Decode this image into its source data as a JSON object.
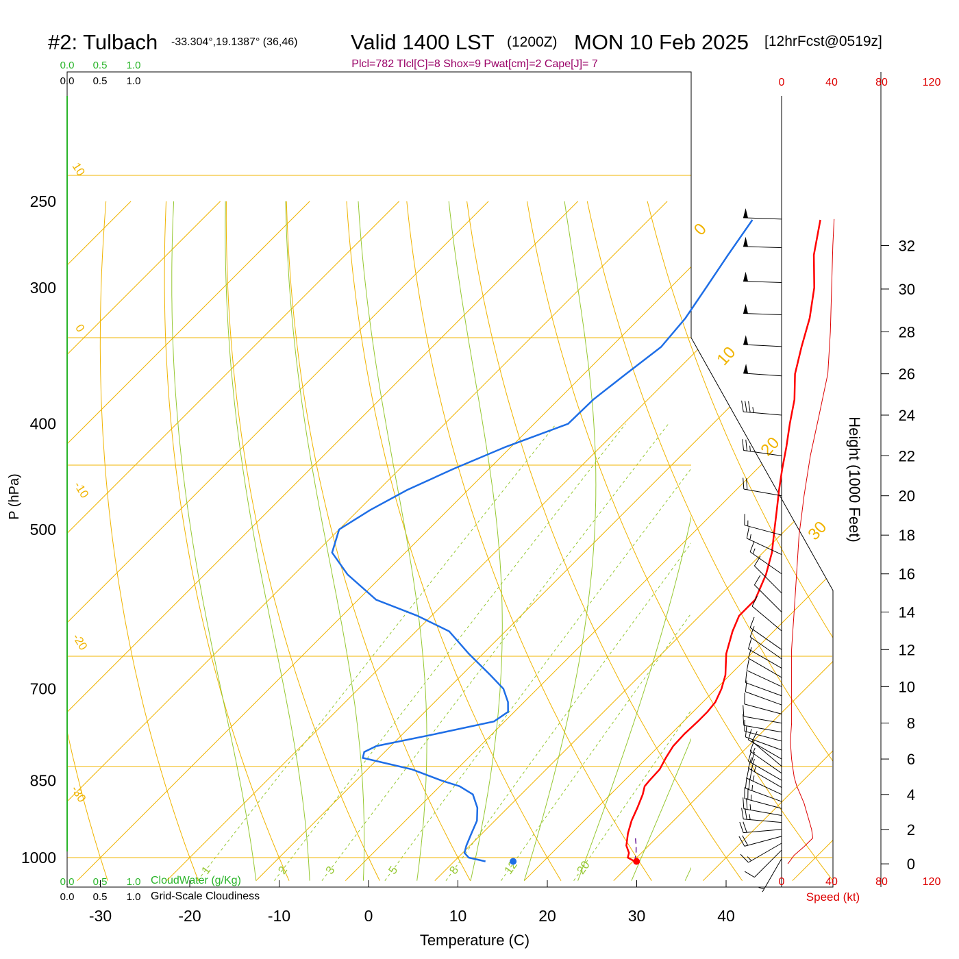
{
  "header": {
    "station": "#2: Tulbach",
    "coords": "-33.304°,19.1387° (36,46)",
    "valid": "Valid 1400 LST",
    "zulu": "(1200Z)",
    "date": "MON 10 Feb 2025",
    "forecast": "[12hrFcst@0519z]",
    "indices": "Plcl=782 Tlcl[C]=8 Shox=9 Pwat[cm]=2 Cape[J]= 7"
  },
  "colors": {
    "temperature": "#ff0000",
    "dewpoint": "#1e6ee6",
    "isotherm": "#f0b400",
    "dry_adiabat": "#f0b400",
    "moist_adiabat": "#96c832",
    "mixing_ratio": "#96c832",
    "cloud_axis": "#28b428",
    "speed": "#dd0000",
    "parcel": "#6a1b9a",
    "indices_text": "#990066"
  },
  "chart_data": {
    "type": "line",
    "xlabel": "Temperature (C)",
    "ylabel": "P (hPa)",
    "right_ylabel": "Height (1000 Feet)",
    "x_ticks": [
      -30,
      -20,
      -10,
      0,
      10,
      20,
      30,
      40
    ],
    "pressure_ticks": [
      250,
      300,
      400,
      500,
      700,
      850,
      1000
    ],
    "height_ticks": [
      0,
      2,
      4,
      6,
      8,
      10,
      12,
      14,
      16,
      18,
      20,
      22,
      24,
      26,
      28,
      30,
      32
    ],
    "speed_ticks": [
      "0",
      "40",
      "80",
      "120"
    ],
    "speed_label": "Speed (kt)",
    "cloud_ticks": [
      "0.0",
      "0.5",
      "1.0"
    ],
    "cloud_water_label": "CloudWater (g/Kg)",
    "cloudiness_label": "Grid-Scale Cloudiness",
    "isotherm_labels": [
      "0",
      "10",
      "20",
      "30"
    ],
    "dry_adiabat_labels": [
      "10",
      "0",
      "-10",
      "-20",
      "-30"
    ],
    "mixing_ratio_labels": [
      "1",
      "2",
      "3",
      "5",
      "8",
      "12",
      "20"
    ],
    "series": [
      {
        "key": "temperature",
        "points": [
          [
            1008,
            30.2
          ],
          [
            1000,
            29.0
          ],
          [
            990,
            28.6
          ],
          [
            975,
            27.5
          ],
          [
            950,
            26.3
          ],
          [
            925,
            25.3
          ],
          [
            900,
            24.5
          ],
          [
            875,
            23.6
          ],
          [
            860,
            22.9
          ],
          [
            850,
            22.8
          ],
          [
            830,
            22.7
          ],
          [
            810,
            22.1
          ],
          [
            790,
            21.6
          ],
          [
            770,
            21.5
          ],
          [
            750,
            21.6
          ],
          [
            735,
            21.6
          ],
          [
            720,
            21.4
          ],
          [
            700,
            20.6
          ],
          [
            680,
            19.5
          ],
          [
            650,
            17.2
          ],
          [
            620,
            15.4
          ],
          [
            600,
            14.4
          ],
          [
            580,
            14.4
          ],
          [
            550,
            12.8
          ],
          [
            525,
            11.0
          ],
          [
            500,
            8.7
          ],
          [
            480,
            6.8
          ],
          [
            460,
            4.8
          ],
          [
            440,
            2.8
          ],
          [
            420,
            0.8
          ],
          [
            400,
            -1.4
          ],
          [
            380,
            -3.6
          ],
          [
            360,
            -6.4
          ],
          [
            340,
            -8.7
          ],
          [
            320,
            -11.0
          ],
          [
            300,
            -13.9
          ],
          [
            280,
            -17.6
          ],
          [
            260,
            -20.8
          ]
        ]
      },
      {
        "key": "dewpoint",
        "points": [
          [
            1008,
            13.5
          ],
          [
            1000,
            11.2
          ],
          [
            990,
            10.2
          ],
          [
            975,
            9.6
          ],
          [
            950,
            8.8
          ],
          [
            925,
            8.0
          ],
          [
            900,
            6.6
          ],
          [
            875,
            4.6
          ],
          [
            860,
            2.2
          ],
          [
            850,
            -0.4
          ],
          [
            830,
            -5.0
          ],
          [
            810,
            -11.8
          ],
          [
            800,
            -12.3
          ],
          [
            790,
            -11.6
          ],
          [
            770,
            -6.3
          ],
          [
            750,
            -1.2
          ],
          [
            735,
            -0.7
          ],
          [
            720,
            -1.8
          ],
          [
            700,
            -3.8
          ],
          [
            680,
            -6.8
          ],
          [
            650,
            -11.6
          ],
          [
            620,
            -16.3
          ],
          [
            600,
            -21.6
          ],
          [
            580,
            -28.0
          ],
          [
            550,
            -34.0
          ],
          [
            525,
            -38.2
          ],
          [
            500,
            -40.0
          ],
          [
            480,
            -38.7
          ],
          [
            460,
            -36.8
          ],
          [
            440,
            -34.0
          ],
          [
            420,
            -30.6
          ],
          [
            400,
            -26.2
          ],
          [
            380,
            -26.1
          ],
          [
            360,
            -25.3
          ],
          [
            340,
            -24.4
          ],
          [
            320,
            -24.9
          ],
          [
            300,
            -26.0
          ],
          [
            280,
            -27.2
          ],
          [
            260,
            -28.4
          ]
        ]
      },
      {
        "key": "parcel",
        "points": [
          [
            1008,
            30.2
          ],
          [
            990,
            29.4
          ],
          [
            975,
            28.6
          ],
          [
            960,
            27.7
          ]
        ]
      }
    ],
    "surface_temperature": 30.4,
    "surface_dewpoint": 16.6,
    "wind_speed_kt": [
      [
        0,
        5
      ],
      [
        0.5,
        10
      ],
      [
        1,
        18
      ],
      [
        1.5,
        25
      ],
      [
        2,
        24
      ],
      [
        2.5,
        22
      ],
      [
        3,
        20
      ],
      [
        3.5,
        18
      ],
      [
        4,
        15
      ],
      [
        4.5,
        12
      ],
      [
        5,
        10
      ],
      [
        5.5,
        9
      ],
      [
        6,
        8
      ],
      [
        7,
        7
      ],
      [
        8,
        8
      ],
      [
        9,
        8
      ],
      [
        10,
        8
      ],
      [
        11,
        8
      ],
      [
        12,
        8
      ],
      [
        13,
        9
      ],
      [
        14,
        10
      ],
      [
        15,
        11
      ],
      [
        16,
        12
      ],
      [
        17,
        13
      ],
      [
        18,
        14
      ],
      [
        19,
        16
      ],
      [
        20,
        18
      ],
      [
        22,
        23
      ],
      [
        24,
        30
      ],
      [
        26,
        37
      ],
      [
        28,
        39
      ],
      [
        30,
        40
      ],
      [
        32,
        41
      ],
      [
        33.2,
        42
      ]
    ],
    "wind_barbs": [
      [
        0.3,
        210,
        5
      ],
      [
        0.8,
        225,
        10
      ],
      [
        1.2,
        240,
        15
      ],
      [
        1.6,
        255,
        20
      ],
      [
        2,
        265,
        20
      ],
      [
        2.4,
        275,
        25
      ],
      [
        2.8,
        280,
        25
      ],
      [
        3.2,
        285,
        25
      ],
      [
        3.6,
        290,
        25
      ],
      [
        4,
        295,
        25
      ],
      [
        4.4,
        300,
        25
      ],
      [
        4.8,
        300,
        20
      ],
      [
        5.2,
        305,
        15
      ],
      [
        5.6,
        310,
        10
      ],
      [
        6,
        300,
        10
      ],
      [
        6.5,
        290,
        10
      ],
      [
        7,
        285,
        10
      ],
      [
        7.5,
        280,
        10
      ],
      [
        8,
        280,
        10
      ],
      [
        8.5,
        285,
        10
      ],
      [
        9,
        290,
        10
      ],
      [
        9.5,
        290,
        10
      ],
      [
        10,
        295,
        10
      ],
      [
        10.5,
        300,
        10
      ],
      [
        11,
        300,
        10
      ],
      [
        11.5,
        305,
        10
      ],
      [
        12,
        305,
        10
      ],
      [
        13,
        310,
        10
      ],
      [
        14,
        315,
        10
      ],
      [
        15,
        315,
        10
      ],
      [
        16,
        305,
        15
      ],
      [
        17,
        295,
        15
      ],
      [
        18,
        285,
        15
      ],
      [
        20,
        280,
        20
      ],
      [
        22,
        278,
        25
      ],
      [
        24,
        275,
        35
      ],
      [
        25.9,
        274,
        50
      ],
      [
        27.3,
        273,
        50
      ],
      [
        28.8,
        272,
        50
      ],
      [
        30.3,
        272,
        50
      ],
      [
        31.9,
        272,
        50
      ],
      [
        33.2,
        272,
        50
      ]
    ]
  }
}
